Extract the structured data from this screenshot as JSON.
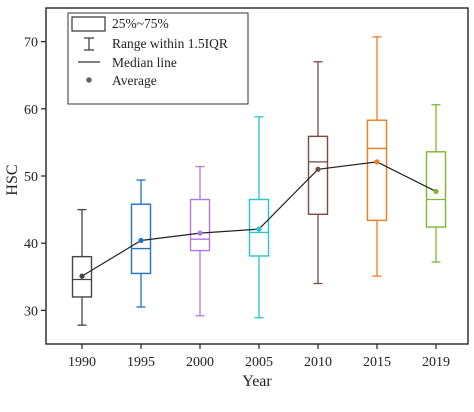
{
  "chart_data": {
    "type": "box",
    "title": "",
    "xlabel": "Year",
    "ylabel": "HSC",
    "ylim": [
      25,
      75
    ],
    "yticks": [
      30,
      40,
      50,
      60,
      70
    ],
    "grid": false,
    "legend_position": "top-left",
    "legend": {
      "box": "25%~75%",
      "range": "Range within 1.5IQR",
      "median": "Median line",
      "average": "Average"
    },
    "categories": [
      "1990",
      "1995",
      "2000",
      "2005",
      "2010",
      "2015",
      "2019"
    ],
    "colors": [
      "#444444",
      "#1f6fd1",
      "#b077e0",
      "#27c4cf",
      "#7a4a43",
      "#f07a1f",
      "#7fb52f"
    ],
    "average_line_color": "#222222",
    "boxes": [
      {
        "whisker_low": 27.8,
        "q1": 32.0,
        "median": 34.6,
        "q3": 38.0,
        "whisker_high": 45.0,
        "mean": 35.1
      },
      {
        "whisker_low": 30.5,
        "q1": 35.5,
        "median": 39.2,
        "q3": 45.8,
        "whisker_high": 49.4,
        "mean": 40.4
      },
      {
        "whisker_low": 29.2,
        "q1": 38.9,
        "median": 40.6,
        "q3": 46.5,
        "whisker_high": 51.4,
        "mean": 41.5
      },
      {
        "whisker_low": 28.9,
        "q1": 38.1,
        "median": 41.6,
        "q3": 46.5,
        "whisker_high": 58.8,
        "mean": 42.1
      },
      {
        "whisker_low": 34.0,
        "q1": 44.3,
        "median": 52.1,
        "q3": 55.9,
        "whisker_high": 67.0,
        "mean": 51.0
      },
      {
        "whisker_low": 35.1,
        "q1": 43.4,
        "median": 54.1,
        "q3": 58.3,
        "whisker_high": 70.7,
        "mean": 52.1
      },
      {
        "whisker_low": 37.2,
        "q1": 42.4,
        "median": 46.5,
        "q3": 53.6,
        "whisker_high": 60.6,
        "mean": 47.7
      }
    ]
  }
}
